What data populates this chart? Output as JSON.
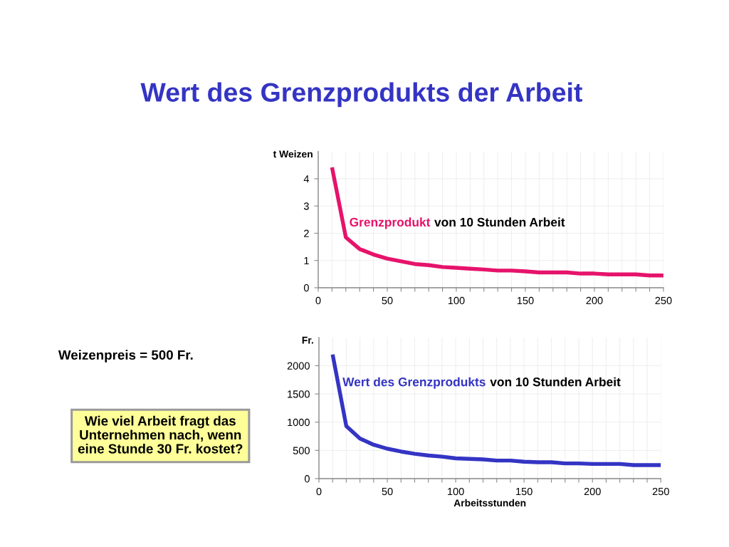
{
  "chart_data": [
    {
      "type": "line",
      "title": "Wert des Grenzprodukts der Arbeit",
      "ylabel": "t Weizen",
      "x": [
        10,
        20,
        30,
        40,
        50,
        60,
        70,
        80,
        90,
        100,
        110,
        120,
        130,
        140,
        150,
        160,
        170,
        180,
        190,
        200,
        210,
        220,
        230,
        240,
        250
      ],
      "series": [
        {
          "name": "Grenzprodukt",
          "color": "#e6136b",
          "values": [
            4.42,
            1.85,
            1.42,
            1.22,
            1.07,
            0.97,
            0.87,
            0.83,
            0.76,
            0.73,
            0.7,
            0.67,
            0.63,
            0.63,
            0.6,
            0.56,
            0.56,
            0.56,
            0.52,
            0.52,
            0.49,
            0.49,
            0.49,
            0.45,
            0.45
          ]
        }
      ],
      "annotations": [
        "von 10 Stunden Arbeit"
      ],
      "xlim": [
        0,
        250
      ],
      "xticks": [
        0,
        {
          "value": 10,
          "label": null
        },
        {
          "value": 20,
          "label": null
        },
        {
          "value": 30,
          "label": null
        },
        {
          "value": 40,
          "label": null
        },
        50,
        {
          "value": 60,
          "label": null
        },
        {
          "value": 70,
          "label": null
        },
        {
          "value": 80,
          "label": null
        },
        {
          "value": 90,
          "label": null
        },
        100,
        {
          "value": 110,
          "label": null
        },
        {
          "value": 120,
          "label": null
        },
        {
          "value": 130,
          "label": null
        },
        {
          "value": 140,
          "label": null
        },
        150,
        {
          "value": 160,
          "label": null
        },
        {
          "value": 170,
          "label": null
        },
        {
          "value": 180,
          "label": null
        },
        {
          "value": 190,
          "label": null
        },
        200,
        {
          "value": 210,
          "label": null
        },
        {
          "value": 220,
          "label": null
        },
        {
          "value": 230,
          "label": null
        },
        {
          "value": 240,
          "label": null
        },
        250
      ],
      "ylim": [
        0,
        5
      ],
      "yticks": [
        0,
        1,
        2,
        3,
        4
      ],
      "grid": true
    },
    {
      "type": "line",
      "xlabel": "Arbeitsstunden",
      "ylabel": "Fr.",
      "x": [
        10,
        20,
        30,
        40,
        50,
        60,
        70,
        80,
        90,
        100,
        110,
        120,
        130,
        140,
        150,
        160,
        170,
        180,
        190,
        200,
        210,
        220,
        230,
        240,
        250
      ],
      "series": [
        {
          "name": "Wert des Grenzprodukts",
          "color": "#3434c4",
          "values": [
            2200,
            930,
            710,
            600,
            530,
            480,
            440,
            410,
            390,
            360,
            350,
            340,
            320,
            320,
            300,
            290,
            290,
            270,
            270,
            260,
            260,
            260,
            240,
            240,
            240
          ]
        }
      ],
      "annotations": [
        "von 10 Stunden Arbeit",
        "Weizenpreis = 500 Fr.",
        "Wie viel Arbeit fragt das\nUnternehmen nach, wenn\neine Stunde 30 Fr. kostet?"
      ],
      "xlim": [
        0,
        250
      ],
      "xticks": [
        0,
        {
          "value": 10,
          "label": null
        },
        {
          "value": 20,
          "label": null
        },
        {
          "value": 30,
          "label": null
        },
        {
          "value": 40,
          "label": null
        },
        50,
        {
          "value": 60,
          "label": null
        },
        {
          "value": 70,
          "label": null
        },
        {
          "value": 80,
          "label": null
        },
        {
          "value": 90,
          "label": null
        },
        100,
        {
          "value": 110,
          "label": null
        },
        {
          "value": 120,
          "label": null
        },
        {
          "value": 130,
          "label": null
        },
        {
          "value": 140,
          "label": null
        },
        150,
        {
          "value": 160,
          "label": null
        },
        {
          "value": 170,
          "label": null
        },
        {
          "value": 180,
          "label": null
        },
        {
          "value": 190,
          "label": null
        },
        200,
        {
          "value": 210,
          "label": null
        },
        {
          "value": 220,
          "label": null
        },
        {
          "value": 230,
          "label": null
        },
        {
          "value": 240,
          "label": null
        },
        250
      ],
      "ylim": [
        0,
        2500
      ],
      "yticks": [
        0,
        500,
        1000,
        1500,
        2000
      ],
      "grid": true
    }
  ]
}
